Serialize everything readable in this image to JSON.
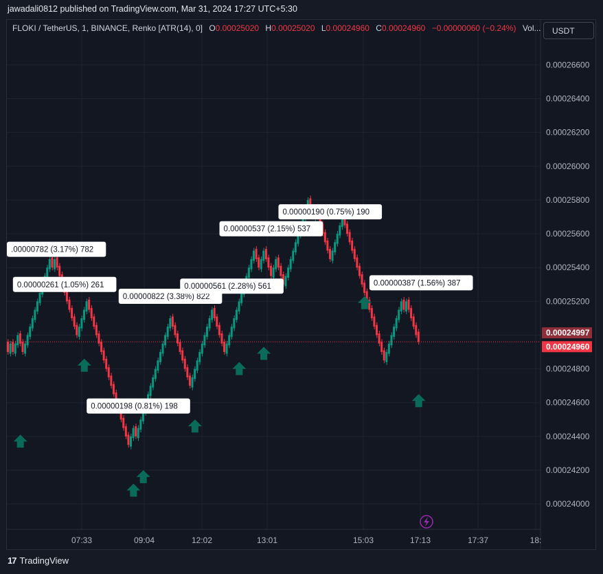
{
  "header": {
    "published_line": "jawadali0812 published on TradingView.com, Mar 31, 2024 17:27 UTC+5:30"
  },
  "legend": {
    "symbol": "FLOKI / TetherUS, 1, BINANCE, Renko [ATR(14), 0]",
    "open_label": "O",
    "open": "0.00025020",
    "high_label": "H",
    "high": "0.00025020",
    "low_label": "L",
    "low": "0.00024960",
    "close_label": "C",
    "close": "0.00024960",
    "change": "−0.00000060 (−0.24%)",
    "volume_label": "Vol..."
  },
  "currency_button": "USDT",
  "footer": {
    "brand": "TradingView",
    "logo_text": "17"
  },
  "colors": {
    "up": "#089981",
    "down": "#f23645",
    "bg": "#131722",
    "grid": "#1f2330",
    "arrow": "#0b6b5a",
    "label_bg": "#ffffff"
  },
  "chart_data": {
    "type": "renko",
    "ylim": [
      0.0002385,
      0.0002674
    ],
    "y_ticks": [
      "0.00026600",
      "0.00026400",
      "0.00026200",
      "0.00026000",
      "0.00025800",
      "0.00025600",
      "0.00025400",
      "0.00025200",
      "0.00025000",
      "0.00024800",
      "0.00024600",
      "0.00024400",
      "0.00024200",
      "0.00024000"
    ],
    "x_ticks": [
      "07:33",
      "09:04",
      "12:02",
      "13:01",
      "15:03",
      "17:13",
      "17:37",
      "18:"
    ],
    "brick_size": 6e-07,
    "last_price": "0.00024960",
    "countdown_price": "0.00024997",
    "bricks": [
      {
        "t": 0.000249,
        "s": -1
      },
      {
        "t": 0.0002495,
        "s": 1
      },
      {
        "t": 0.000249,
        "s": -1
      },
      {
        "t": 0.0002495,
        "s": 1
      },
      {
        "t": 0.00025,
        "s": 1
      },
      {
        "t": 0.0002495,
        "s": -1
      },
      {
        "t": 0.000249,
        "s": -1
      },
      {
        "t": 0.0002495,
        "s": 1
      },
      {
        "t": 0.00025,
        "s": 1
      },
      {
        "t": 0.0002505,
        "s": 1
      },
      {
        "t": 0.000251,
        "s": 1
      },
      {
        "t": 0.0002515,
        "s": 1
      },
      {
        "t": 0.000252,
        "s": 1
      },
      {
        "t": 0.0002525,
        "s": 1
      },
      {
        "t": 0.000253,
        "s": 1
      },
      {
        "t": 0.0002535,
        "s": 1
      },
      {
        "t": 0.000254,
        "s": 1
      },
      {
        "t": 0.0002545,
        "s": 1
      },
      {
        "t": 0.000254,
        "s": -1
      },
      {
        "t": 0.0002545,
        "s": 1
      },
      {
        "t": 0.000254,
        "s": -1
      },
      {
        "t": 0.0002535,
        "s": -1
      },
      {
        "t": 0.000253,
        "s": -1
      },
      {
        "t": 0.0002525,
        "s": -1
      },
      {
        "t": 0.000252,
        "s": -1
      },
      {
        "t": 0.0002515,
        "s": -1
      },
      {
        "t": 0.000251,
        "s": -1
      },
      {
        "t": 0.0002505,
        "s": -1
      },
      {
        "t": 0.00025,
        "s": -1
      },
      {
        "t": 0.0002505,
        "s": 1
      },
      {
        "t": 0.000251,
        "s": 1
      },
      {
        "t": 0.0002515,
        "s": 1
      },
      {
        "t": 0.000252,
        "s": 1
      },
      {
        "t": 0.0002515,
        "s": -1
      },
      {
        "t": 0.000251,
        "s": -1
      },
      {
        "t": 0.0002505,
        "s": -1
      },
      {
        "t": 0.00025,
        "s": -1
      },
      {
        "t": 0.0002495,
        "s": -1
      },
      {
        "t": 0.000249,
        "s": -1
      },
      {
        "t": 0.0002485,
        "s": -1
      },
      {
        "t": 0.000248,
        "s": -1
      },
      {
        "t": 0.0002475,
        "s": -1
      },
      {
        "t": 0.000247,
        "s": -1
      },
      {
        "t": 0.0002465,
        "s": -1
      },
      {
        "t": 0.000246,
        "s": -1
      },
      {
        "t": 0.0002455,
        "s": -1
      },
      {
        "t": 0.000245,
        "s": -1
      },
      {
        "t": 0.0002445,
        "s": -1
      },
      {
        "t": 0.000244,
        "s": -1
      },
      {
        "t": 0.0002435,
        "s": -1
      },
      {
        "t": 0.000244,
        "s": 1
      },
      {
        "t": 0.0002445,
        "s": 1
      },
      {
        "t": 0.000244,
        "s": -1
      },
      {
        "t": 0.0002445,
        "s": 1
      },
      {
        "t": 0.000245,
        "s": 1
      },
      {
        "t": 0.0002455,
        "s": 1
      },
      {
        "t": 0.000246,
        "s": 1
      },
      {
        "t": 0.0002465,
        "s": 1
      },
      {
        "t": 0.000247,
        "s": 1
      },
      {
        "t": 0.0002475,
        "s": 1
      },
      {
        "t": 0.000248,
        "s": 1
      },
      {
        "t": 0.0002485,
        "s": 1
      },
      {
        "t": 0.000249,
        "s": 1
      },
      {
        "t": 0.0002495,
        "s": 1
      },
      {
        "t": 0.00025,
        "s": 1
      },
      {
        "t": 0.0002505,
        "s": 1
      },
      {
        "t": 0.000251,
        "s": 1
      },
      {
        "t": 0.0002505,
        "s": -1
      },
      {
        "t": 0.00025,
        "s": -1
      },
      {
        "t": 0.0002495,
        "s": -1
      },
      {
        "t": 0.000249,
        "s": -1
      },
      {
        "t": 0.0002485,
        "s": -1
      },
      {
        "t": 0.000248,
        "s": -1
      },
      {
        "t": 0.0002475,
        "s": -1
      },
      {
        "t": 0.000247,
        "s": -1
      },
      {
        "t": 0.0002475,
        "s": 1
      },
      {
        "t": 0.000248,
        "s": 1
      },
      {
        "t": 0.0002485,
        "s": 1
      },
      {
        "t": 0.000249,
        "s": 1
      },
      {
        "t": 0.0002495,
        "s": 1
      },
      {
        "t": 0.00025,
        "s": 1
      },
      {
        "t": 0.0002505,
        "s": 1
      },
      {
        "t": 0.000251,
        "s": 1
      },
      {
        "t": 0.0002515,
        "s": 1
      },
      {
        "t": 0.000251,
        "s": -1
      },
      {
        "t": 0.0002505,
        "s": -1
      },
      {
        "t": 0.00025,
        "s": -1
      },
      {
        "t": 0.0002495,
        "s": -1
      },
      {
        "t": 0.000249,
        "s": -1
      },
      {
        "t": 0.0002495,
        "s": 1
      },
      {
        "t": 0.00025,
        "s": 1
      },
      {
        "t": 0.0002505,
        "s": 1
      },
      {
        "t": 0.000251,
        "s": 1
      },
      {
        "t": 0.0002515,
        "s": 1
      },
      {
        "t": 0.000252,
        "s": 1
      },
      {
        "t": 0.0002525,
        "s": 1
      },
      {
        "t": 0.000253,
        "s": 1
      },
      {
        "t": 0.0002535,
        "s": 1
      },
      {
        "t": 0.000254,
        "s": 1
      },
      {
        "t": 0.0002545,
        "s": 1
      },
      {
        "t": 0.000255,
        "s": 1
      },
      {
        "t": 0.0002545,
        "s": -1
      },
      {
        "t": 0.000254,
        "s": -1
      },
      {
        "t": 0.0002545,
        "s": 1
      },
      {
        "t": 0.000255,
        "s": 1
      },
      {
        "t": 0.0002545,
        "s": -1
      },
      {
        "t": 0.000254,
        "s": -1
      },
      {
        "t": 0.0002535,
        "s": -1
      },
      {
        "t": 0.000254,
        "s": 1
      },
      {
        "t": 0.0002545,
        "s": 1
      },
      {
        "t": 0.000254,
        "s": -1
      },
      {
        "t": 0.0002535,
        "s": -1
      },
      {
        "t": 0.000253,
        "s": -1
      },
      {
        "t": 0.0002535,
        "s": 1
      },
      {
        "t": 0.000254,
        "s": 1
      },
      {
        "t": 0.0002545,
        "s": 1
      },
      {
        "t": 0.000255,
        "s": 1
      },
      {
        "t": 0.0002555,
        "s": 1
      },
      {
        "t": 0.000256,
        "s": 1
      },
      {
        "t": 0.0002565,
        "s": 1
      },
      {
        "t": 0.000257,
        "s": 1
      },
      {
        "t": 0.0002575,
        "s": 1
      },
      {
        "t": 0.000258,
        "s": 1
      },
      {
        "t": 0.0002575,
        "s": -1
      },
      {
        "t": 0.000257,
        "s": -1
      },
      {
        "t": 0.0002575,
        "s": 1
      },
      {
        "t": 0.000257,
        "s": -1
      },
      {
        "t": 0.0002565,
        "s": -1
      },
      {
        "t": 0.000256,
        "s": -1
      },
      {
        "t": 0.0002555,
        "s": -1
      },
      {
        "t": 0.000255,
        "s": -1
      },
      {
        "t": 0.0002545,
        "s": -1
      },
      {
        "t": 0.000255,
        "s": 1
      },
      {
        "t": 0.0002555,
        "s": 1
      },
      {
        "t": 0.000256,
        "s": 1
      },
      {
        "t": 0.0002565,
        "s": 1
      },
      {
        "t": 0.000257,
        "s": 1
      },
      {
        "t": 0.0002565,
        "s": -1
      },
      {
        "t": 0.000256,
        "s": -1
      },
      {
        "t": 0.0002555,
        "s": -1
      },
      {
        "t": 0.000255,
        "s": -1
      },
      {
        "t": 0.0002545,
        "s": -1
      },
      {
        "t": 0.000254,
        "s": -1
      },
      {
        "t": 0.0002535,
        "s": -1
      },
      {
        "t": 0.000253,
        "s": -1
      },
      {
        "t": 0.0002525,
        "s": -1
      },
      {
        "t": 0.000252,
        "s": -1
      },
      {
        "t": 0.0002515,
        "s": -1
      },
      {
        "t": 0.000251,
        "s": -1
      },
      {
        "t": 0.0002505,
        "s": -1
      },
      {
        "t": 0.00025,
        "s": -1
      },
      {
        "t": 0.0002495,
        "s": -1
      },
      {
        "t": 0.000249,
        "s": -1
      },
      {
        "t": 0.0002485,
        "s": -1
      },
      {
        "t": 0.000249,
        "s": 1
      },
      {
        "t": 0.0002495,
        "s": 1
      },
      {
        "t": 0.00025,
        "s": 1
      },
      {
        "t": 0.0002505,
        "s": 1
      },
      {
        "t": 0.000251,
        "s": 1
      },
      {
        "t": 0.0002515,
        "s": 1
      },
      {
        "t": 0.000252,
        "s": 1
      },
      {
        "t": 0.0002515,
        "s": -1
      },
      {
        "t": 0.000252,
        "s": 1
      },
      {
        "t": 0.0002515,
        "s": -1
      },
      {
        "t": 0.000251,
        "s": -1
      },
      {
        "t": 0.0002505,
        "s": -1
      },
      {
        "t": 0.00025,
        "s": -1
      },
      {
        "t": 0.0002496,
        "s": -1
      }
    ],
    "annotations": [
      {
        "text": ".00000782 (3.17%) 782",
        "price": 0.00025508,
        "brick": 13,
        "align": "right"
      },
      {
        "text": "0.00000261 (1.05%) 261",
        "price": 0.000253,
        "brick": 23
      },
      {
        "text": "0.00000822 (3.38%) 822",
        "price": 0.0002523,
        "brick": 66
      },
      {
        "text": "0.00000561 (2.28%) 561",
        "price": 0.0002529,
        "brick": 91
      },
      {
        "text": "0.00000537 (2.15%) 537",
        "price": 0.0002563,
        "brick": 107
      },
      {
        "text": "0.00000190 (0.75%) 190",
        "price": 0.0002573,
        "brick": 131
      },
      {
        "text": "0.00000387 (1.56%) 387",
        "price": 0.0002531,
        "brick": 168
      },
      {
        "text": "0.00000198 (0.81%) 198",
        "price": 0.0002458,
        "brick": 53
      }
    ],
    "signals": [
      {
        "brick": 5,
        "price": 0.0002437
      },
      {
        "brick": 31,
        "price": 0.0002482
      },
      {
        "brick": 51,
        "price": 0.0002408
      },
      {
        "brick": 55,
        "price": 0.0002416
      },
      {
        "brick": 76,
        "price": 0.0002446
      },
      {
        "brick": 94,
        "price": 0.000248
      },
      {
        "brick": 104,
        "price": 0.0002489
      },
      {
        "brick": 145,
        "price": 0.0002519
      },
      {
        "brick": 167,
        "price": 0.0002461
      }
    ]
  }
}
